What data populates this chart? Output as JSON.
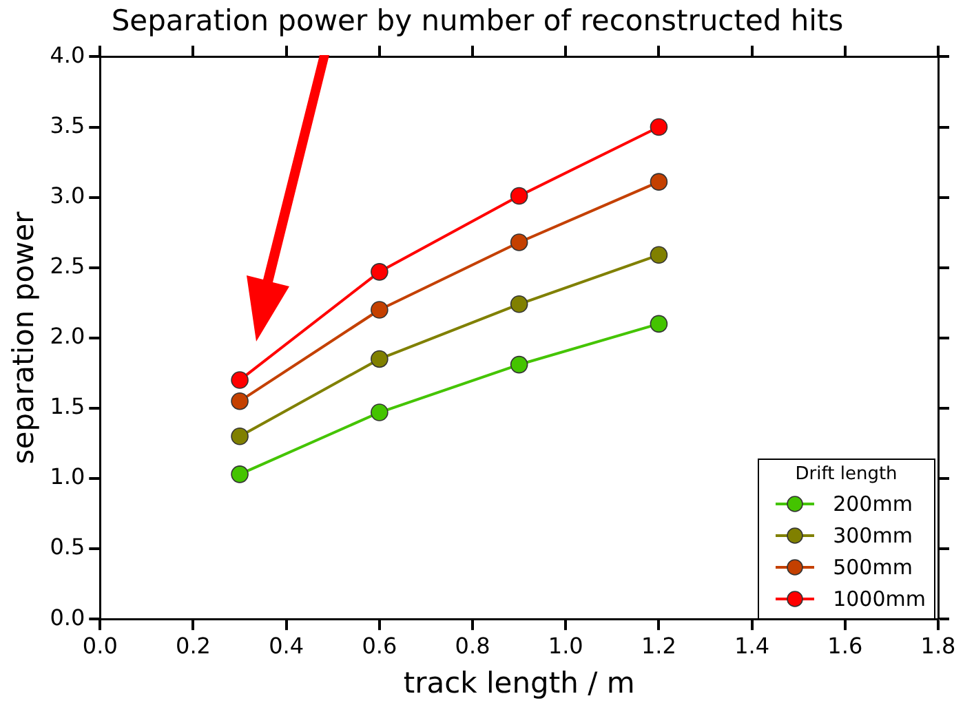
{
  "chart_data": {
    "type": "line",
    "title": "Separation power by number of reconstructed hits",
    "xlabel": "track length / m",
    "ylabel": "separation power",
    "legend_title": "Drift length",
    "x": [
      0.3,
      0.6,
      0.9,
      1.2
    ],
    "series": [
      {
        "name": "200mm",
        "color": "#44c400",
        "values": [
          1.03,
          1.47,
          1.81,
          2.1
        ]
      },
      {
        "name": "300mm",
        "color": "#808000",
        "values": [
          1.3,
          1.85,
          2.24,
          2.59
        ]
      },
      {
        "name": "500mm",
        "color": "#c44000",
        "values": [
          1.55,
          2.2,
          2.68,
          3.11
        ]
      },
      {
        "name": "1000mm",
        "color": "#ff0000",
        "values": [
          1.7,
          2.47,
          3.01,
          3.5
        ],
        "errors": [
          null,
          null,
          null,
          0.05
        ]
      }
    ],
    "xlim": [
      0.0,
      1.8
    ],
    "xticks": [
      {
        "value": 0,
        "label": "0.0"
      },
      0.2,
      0.4,
      0.6,
      0.8,
      {
        "value": 1,
        "label": "1.0"
      },
      1.2,
      1.4,
      1.6,
      1.8
    ],
    "ylim": [
      0.0,
      4.0
    ],
    "yticks": [
      {
        "value": 0,
        "label": "0.0"
      },
      0.5,
      {
        "value": 1,
        "label": "1.0"
      },
      1.5,
      {
        "value": 2,
        "label": "2.0"
      },
      2.5,
      {
        "value": 3,
        "label": "3.0"
      },
      3.5,
      {
        "value": 4,
        "label": "4.0"
      }
    ],
    "grid": false,
    "legend": "bottom right",
    "marker": "circle",
    "line_style": "solid"
  }
}
